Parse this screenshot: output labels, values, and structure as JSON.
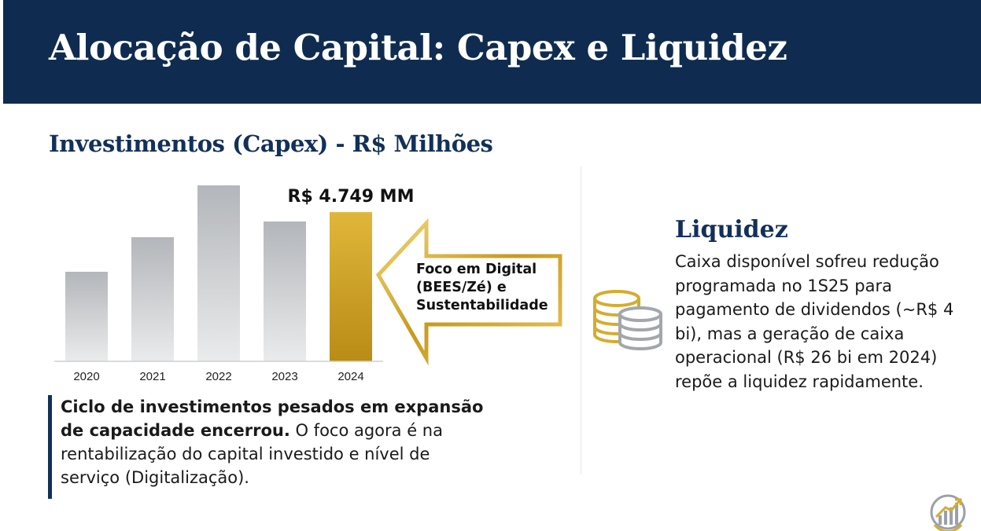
{
  "title": "Alocação de Capital: Capex e Liquidez",
  "capex": {
    "section_title": "Investimentos (Capex) - R$ Milhões",
    "callout": "Foco em Digital (BEES/Zé) e Sustentabilidade",
    "quote_bold": "Ciclo de investimentos pesados em expansão de capacidade encerrou.",
    "quote_rest": " O foco agora é na rentabilização do capital investido e nível de serviço (Digitalização)."
  },
  "chart_data": {
    "type": "bar",
    "categories": [
      "2020",
      "2021",
      "2022",
      "2023",
      "2024"
    ],
    "values": [
      2850,
      3950,
      5600,
      4450,
      4749
    ],
    "ylim": [
      0,
      6000
    ],
    "highlight_index": 4,
    "data_labels": [
      "",
      "",
      "",
      "",
      "R$ 4.749 MM"
    ],
    "colors": {
      "bar": "#a9acb0",
      "highlight": "#cfa52b",
      "axis": "#c8c8c8"
    }
  },
  "liquidez": {
    "title": "Liquidez",
    "body": "Caixa disponível sofreu redução programada no 1S25 para pagamento de dividendos (~R$ 4 bi), mas a geração de caixa operacional (R$ 26 bi em 2024) repõe a liquidez rapidamente."
  },
  "icons": {
    "coins": "coins-icon",
    "logo": "growth-chart-logo"
  },
  "colors": {
    "navy": "#0f2c50",
    "gold": "#c9a227",
    "gray": "#b0b3b7"
  }
}
